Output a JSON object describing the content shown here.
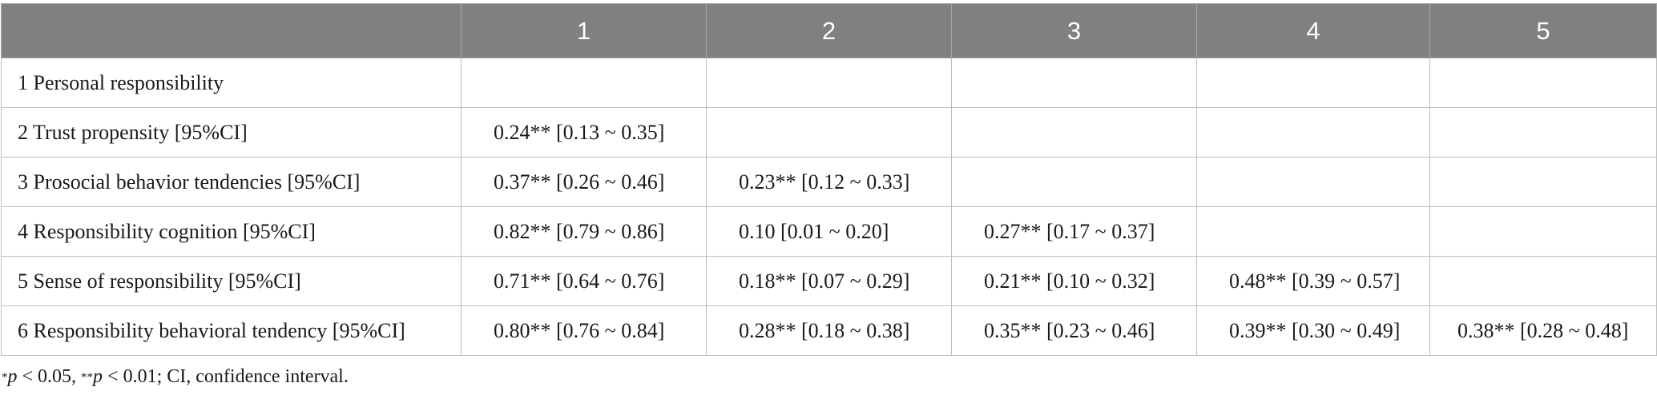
{
  "table": {
    "header_color": "#808080",
    "columns": [
      "",
      "1",
      "2",
      "3",
      "4",
      "5"
    ],
    "rows": [
      {
        "label": "1 Personal responsibility",
        "cells": [
          "",
          "",
          "",
          "",
          ""
        ]
      },
      {
        "label": "2 Trust propensity [95%CI]",
        "cells": [
          "0.24** [0.13 ~ 0.35]",
          "",
          "",
          "",
          ""
        ]
      },
      {
        "label": "3 Prosocial behavior tendencies [95%CI]",
        "cells": [
          "0.37** [0.26 ~ 0.46]",
          "0.23** [0.12 ~ 0.33]",
          "",
          "",
          ""
        ]
      },
      {
        "label": "4 Responsibility cognition [95%CI]",
        "cells": [
          "0.82** [0.79 ~ 0.86]",
          "0.10 [0.01 ~ 0.20]",
          "0.27** [0.17 ~ 0.37]",
          "",
          ""
        ]
      },
      {
        "label": "5 Sense of responsibility [95%CI]",
        "cells": [
          "0.71** [0.64 ~ 0.76]",
          "0.18** [0.07 ~ 0.29]",
          "0.21** [0.10 ~ 0.32]",
          "0.48** [0.39 ~ 0.57]",
          ""
        ]
      },
      {
        "label": "6 Responsibility behavioral tendency [95%CI]",
        "cells": [
          "0.80** [0.76 ~ 0.84]",
          "0.28** [0.18 ~ 0.38]",
          "0.35** [0.23 ~ 0.46]",
          "0.39** [0.30 ~ 0.49]",
          "0.38** [0.28 ~ 0.48]"
        ]
      }
    ]
  },
  "footnote": {
    "mark1": "*",
    "p1": "p",
    "text1": " < 0.05, ",
    "mark2": "**",
    "p2": "p",
    "text2": " < 0.01; CI, confidence interval."
  }
}
